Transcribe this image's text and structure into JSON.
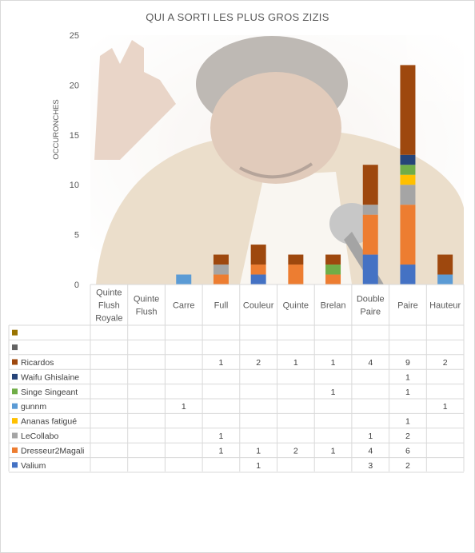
{
  "chart_data": {
    "type": "bar",
    "stacked": true,
    "title": "QUI A SORTI LES PLUS GROS ZIZIS",
    "ylabel": "OCCURONCHES",
    "xlabel": "",
    "ylim": [
      0,
      25
    ],
    "yticks": [
      "0",
      "5",
      "10",
      "15",
      "20",
      "25"
    ],
    "grid": false,
    "legend": "data-table",
    "background_image": "laughing-man-holding-microphone",
    "categories": [
      [
        "Quinte",
        "Flush",
        "Royale"
      ],
      [
        "Quinte",
        "Flush"
      ],
      [
        "Carre"
      ],
      [
        "Full"
      ],
      [
        "Couleur"
      ],
      [
        "Quinte"
      ],
      [
        "Brelan"
      ],
      [
        "Double",
        "Paire"
      ],
      [
        "Paire"
      ],
      [
        "Hauteur"
      ]
    ],
    "series": [
      {
        "name": "Valium",
        "color": "#4472c4",
        "values": [
          null,
          null,
          null,
          null,
          1,
          null,
          null,
          3,
          2,
          null
        ]
      },
      {
        "name": "Dresseur2Magali",
        "color": "#ed7d31",
        "values": [
          null,
          null,
          null,
          1,
          1,
          2,
          1,
          4,
          6,
          null
        ]
      },
      {
        "name": "LeCollabo",
        "color": "#a5a5a5",
        "values": [
          null,
          null,
          null,
          1,
          null,
          null,
          null,
          1,
          2,
          null
        ]
      },
      {
        "name": "Ananas fatigué",
        "color": "#ffc000",
        "values": [
          null,
          null,
          null,
          null,
          null,
          null,
          null,
          null,
          1,
          null
        ]
      },
      {
        "name": "gunnm",
        "color": "#5b9bd5",
        "values": [
          null,
          null,
          1,
          null,
          null,
          null,
          null,
          null,
          null,
          1
        ]
      },
      {
        "name": "Singe Singeant",
        "color": "#70ad47",
        "values": [
          null,
          null,
          null,
          null,
          null,
          null,
          1,
          null,
          1,
          null
        ]
      },
      {
        "name": "Waifu Ghislaine",
        "color": "#264478",
        "values": [
          null,
          null,
          null,
          null,
          null,
          null,
          null,
          null,
          1,
          null
        ]
      },
      {
        "name": "Ricardos",
        "color": "#9e480e",
        "values": [
          null,
          null,
          null,
          1,
          2,
          1,
          1,
          4,
          9,
          2
        ]
      },
      {
        "name": "",
        "color": "#636363",
        "values": [
          null,
          null,
          null,
          null,
          null,
          null,
          null,
          null,
          null,
          null
        ]
      },
      {
        "name": "",
        "color": "#997300",
        "values": [
          null,
          null,
          null,
          null,
          null,
          null,
          null,
          null,
          null,
          null
        ]
      }
    ]
  }
}
